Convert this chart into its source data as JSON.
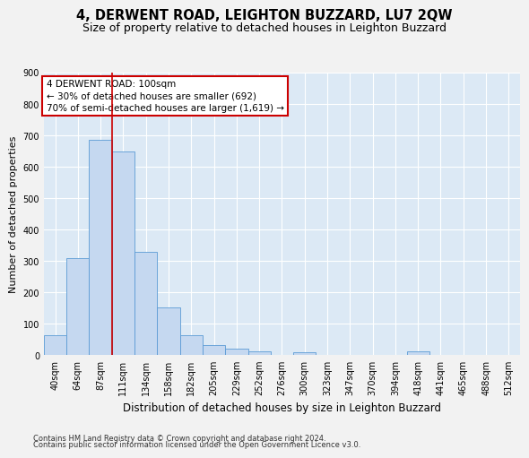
{
  "title": "4, DERWENT ROAD, LEIGHTON BUZZARD, LU7 2QW",
  "subtitle": "Size of property relative to detached houses in Leighton Buzzard",
  "xlabel": "Distribution of detached houses by size in Leighton Buzzard",
  "ylabel": "Number of detached properties",
  "categories": [
    "40sqm",
    "64sqm",
    "87sqm",
    "111sqm",
    "134sqm",
    "158sqm",
    "182sqm",
    "205sqm",
    "229sqm",
    "252sqm",
    "276sqm",
    "300sqm",
    "323sqm",
    "347sqm",
    "370sqm",
    "394sqm",
    "418sqm",
    "441sqm",
    "465sqm",
    "488sqm",
    "512sqm"
  ],
  "values": [
    65,
    310,
    685,
    648,
    328,
    152,
    65,
    33,
    20,
    12,
    0,
    10,
    0,
    0,
    0,
    0,
    12,
    0,
    0,
    0,
    0
  ],
  "bar_color": "#c5d8f0",
  "bar_edge_color": "#5b9bd5",
  "red_line_index": 2,
  "annotation_line1": "4 DERWENT ROAD: 100sqm",
  "annotation_line2": "← 30% of detached houses are smaller (692)",
  "annotation_line3": "70% of semi-detached houses are larger (1,619) →",
  "annotation_box_color": "#ffffff",
  "annotation_box_edge_color": "#cc0000",
  "ylim": [
    0,
    900
  ],
  "yticks": [
    0,
    100,
    200,
    300,
    400,
    500,
    600,
    700,
    800,
    900
  ],
  "bg_color": "#dce9f5",
  "grid_color": "#ffffff",
  "footer_line1": "Contains HM Land Registry data © Crown copyright and database right 2024.",
  "footer_line2": "Contains public sector information licensed under the Open Government Licence v3.0.",
  "fig_bg_color": "#f2f2f2",
  "title_fontsize": 10.5,
  "subtitle_fontsize": 9,
  "tick_fontsize": 7,
  "ylabel_fontsize": 8,
  "xlabel_fontsize": 8.5,
  "annotation_fontsize": 7.5,
  "footer_fontsize": 6
}
